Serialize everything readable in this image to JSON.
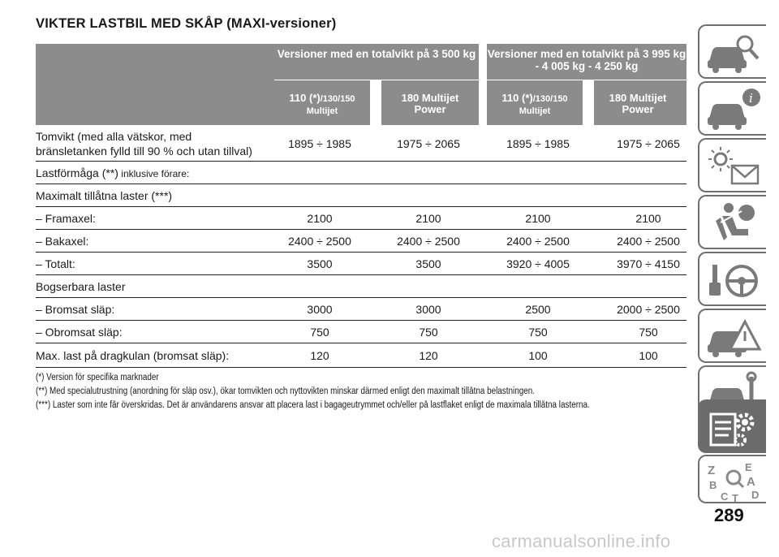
{
  "title": "VIKTER LASTBIL MED SKÅP (MAXI-versioner)",
  "header": {
    "group1": "Versioner med en totalvikt på 3 500 kg",
    "group2": "Versioner med en totalvikt på 3 995 kg - 4 005 kg - 4 250 kg",
    "sub1_main": "110 (*)",
    "sub1_small": "/130/150",
    "sub1_line2": "Multijet",
    "sub2": "180 Multijet Power",
    "sub3_main": "110 (*)",
    "sub3_small": "/130/150",
    "sub3_line2": "Multijet",
    "sub4": "180 Multijet Power"
  },
  "rows": [
    {
      "label": "Tomvikt (med alla vätskor, med",
      "label2": "bränsletanken fylld till 90 % och utan tillval)",
      "values": [
        "1895 ÷ 1985",
        "1975 ÷ 2065",
        "1895 ÷ 1985",
        "1975 ÷ 2065"
      ]
    },
    {
      "label": "Lastförmåga (**)",
      "label_small": " inklusive förare:",
      "values": []
    },
    {
      "label": "Maximalt tillåtna laster (***)",
      "values": []
    },
    {
      "label": "– Framaxel:",
      "values": [
        "2100",
        "2100",
        "2100",
        "2100"
      ]
    },
    {
      "label": "– Bakaxel:",
      "values": [
        "2400 ÷ 2500",
        "2400 ÷ 2500",
        "2400 ÷ 2500",
        "2400 ÷ 2500"
      ]
    },
    {
      "label": "– Totalt:",
      "values": [
        "3500",
        "3500",
        "3920 ÷ 4005",
        "3970 ÷ 4150"
      ]
    },
    {
      "label": "Bogserbara laster",
      "values": []
    },
    {
      "label": "– Bromsat släp:",
      "values": [
        "3000",
        "3000",
        "2500",
        "2000 ÷ 2500"
      ]
    },
    {
      "label": "– Obromsat släp:",
      "values": [
        "750",
        "750",
        "750",
        "750"
      ]
    },
    {
      "label": "Max. last på dragkulan (bromsat släp):",
      "values": [
        "120",
        "120",
        "100",
        "100"
      ]
    }
  ],
  "footnotes": [
    "(*) Version för specifika marknader",
    "(**) Med specialutrustning (anordning för släp osv.), ökar tomvikten och nyttovikten minskar därmed enligt den maximalt tillåtna belastningen.",
    "(***) Laster som inte får överskridas. Det är användarens ansvar att placera last i bagageutrymmet och/eller på lastflaket enligt de maximala tillåtna lasterna."
  ],
  "side_tabs": [
    {
      "icon": "car-search-icon",
      "active": false
    },
    {
      "icon": "car-info-icon",
      "active": false
    },
    {
      "icon": "warning-light-envelope-icon",
      "active": false
    },
    {
      "icon": "seated-person-airbag-icon",
      "active": false
    },
    {
      "icon": "steering-wheel-icon",
      "active": false
    },
    {
      "icon": "car-warning-triangle-icon",
      "active": false
    },
    {
      "icon": "car-tools-icon",
      "active": false
    },
    {
      "icon": "specs-list-gear-icon",
      "active": true
    },
    {
      "icon": "alphabet-index-icon",
      "active": false
    }
  ],
  "page_number": "289",
  "watermark": "carmanualsonline.info"
}
